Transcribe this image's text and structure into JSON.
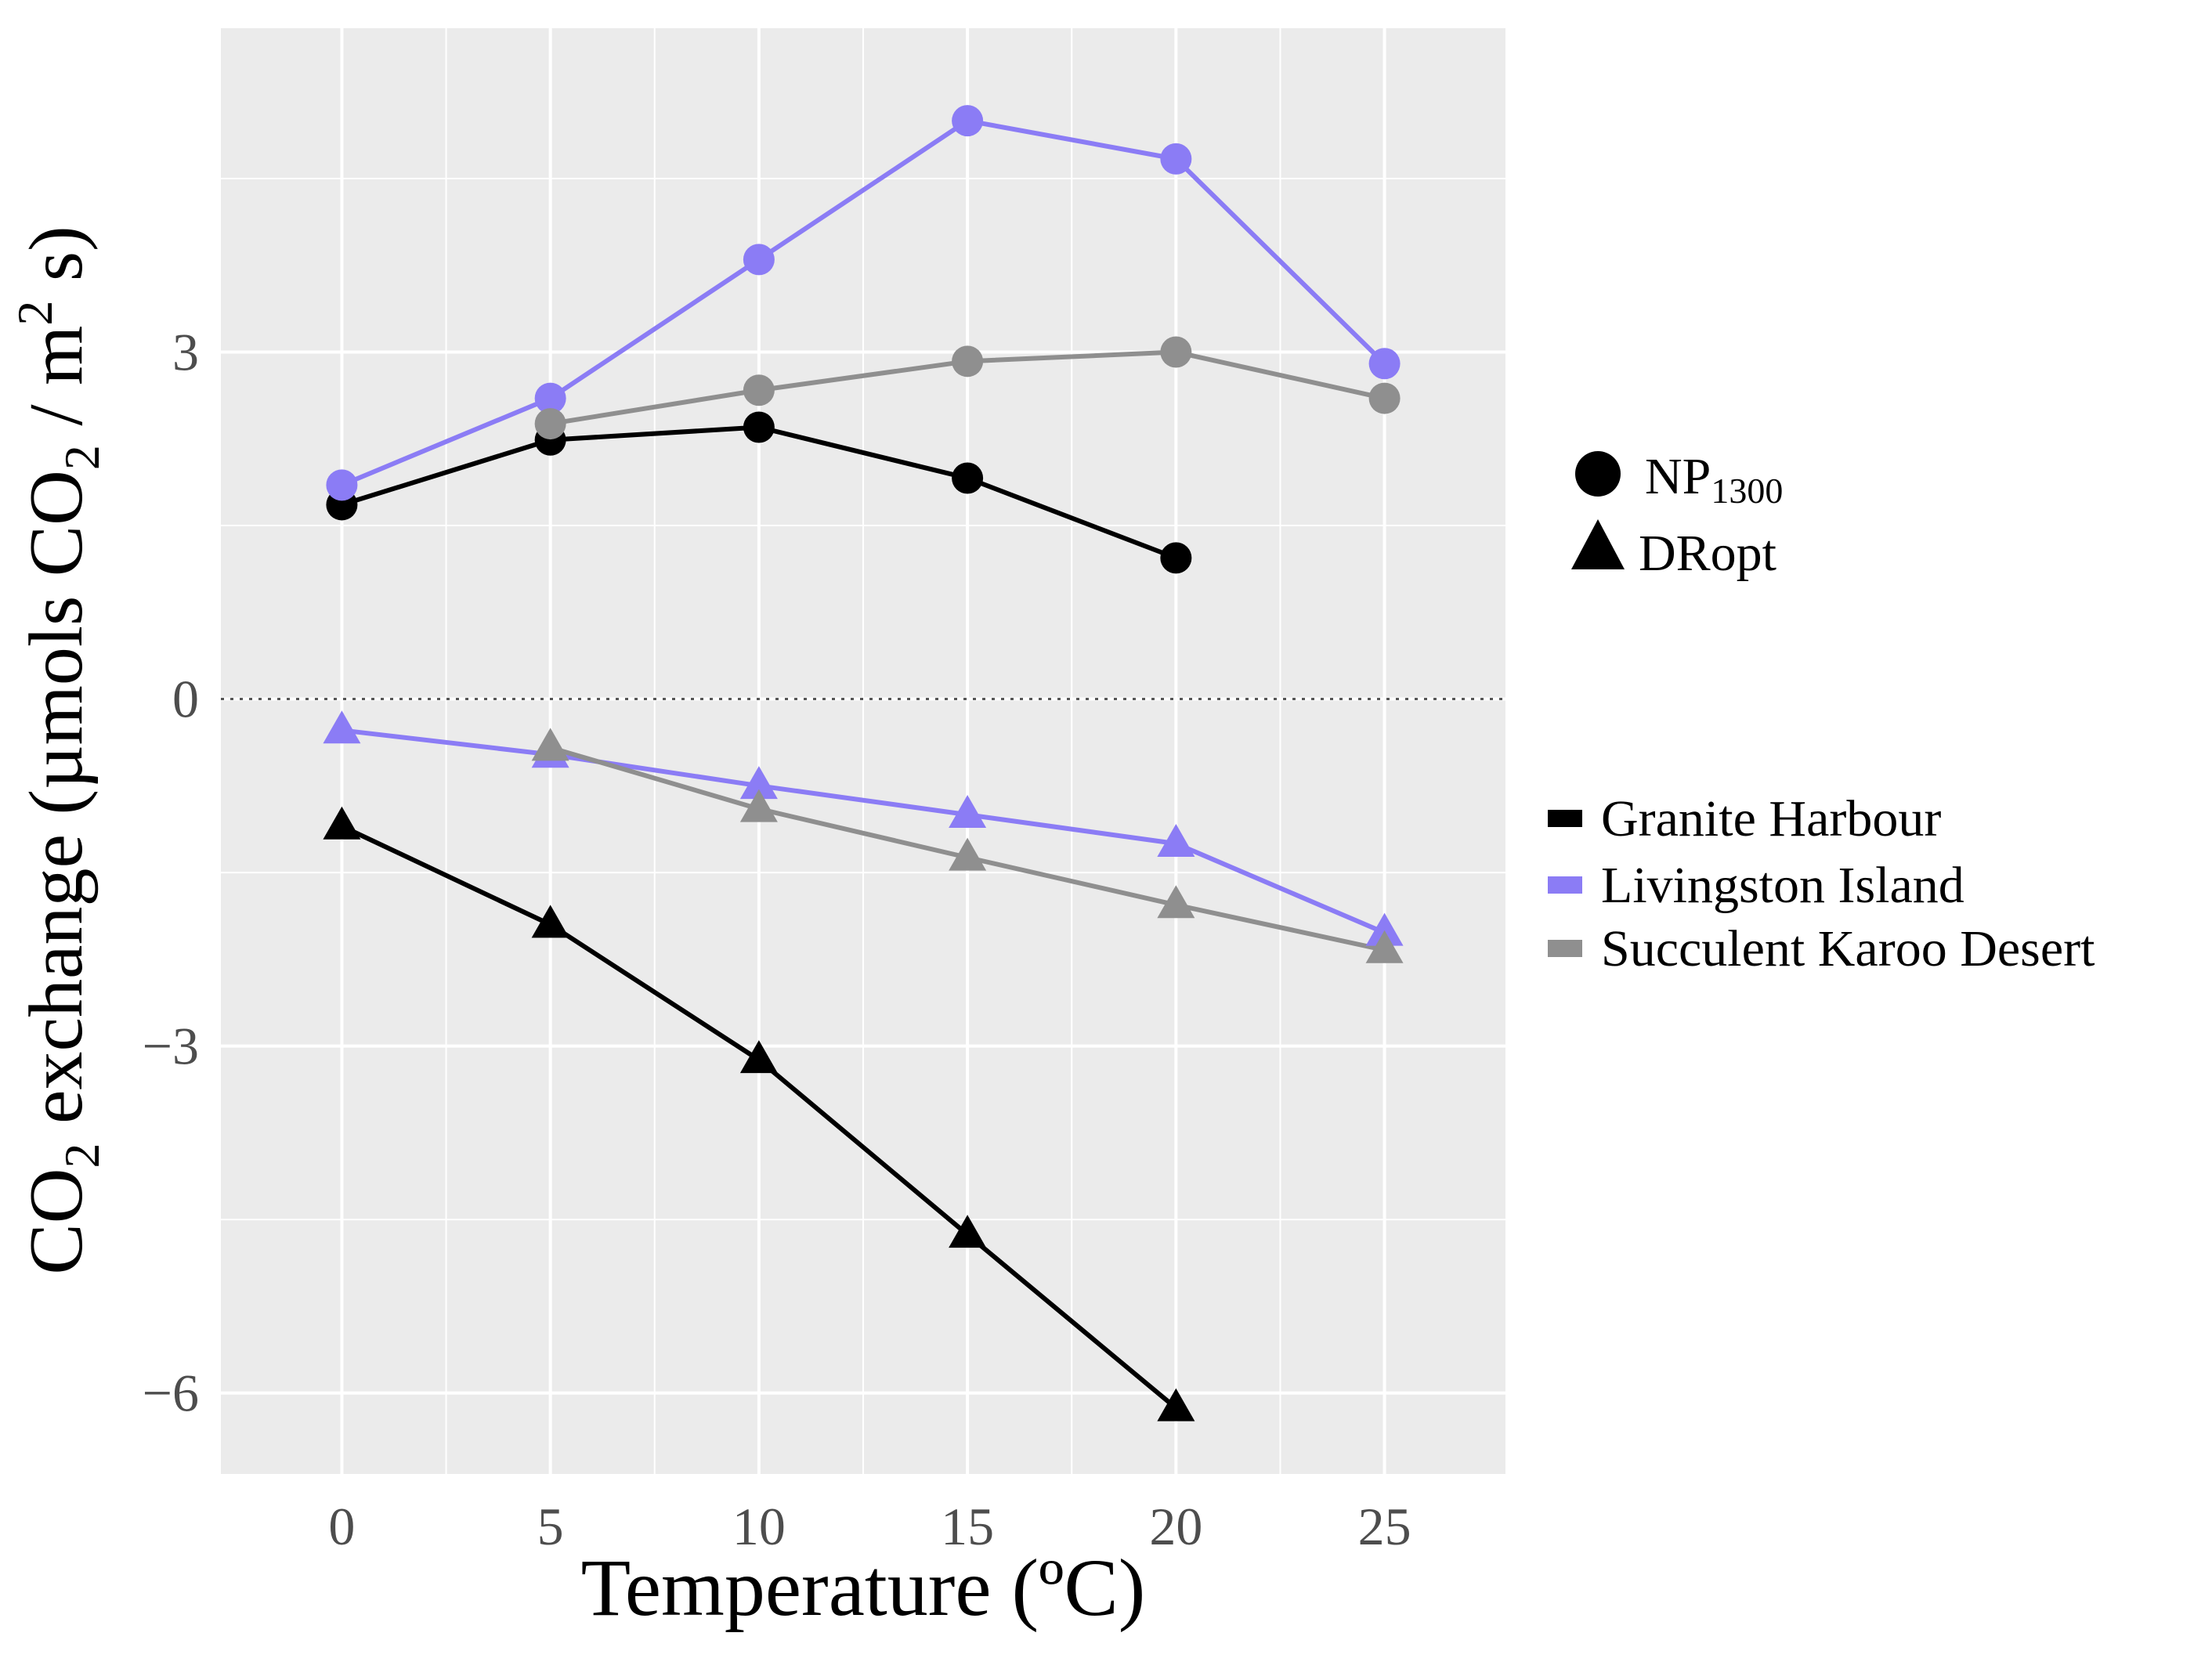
{
  "chart_data": {
    "type": "line",
    "x": [
      0,
      5,
      10,
      15,
      20,
      25
    ],
    "xlim": [
      -2.9,
      27.9
    ],
    "ylim": [
      -6.7,
      5.8
    ],
    "xticks": [
      "0",
      "5",
      "10",
      "15",
      "20",
      "25"
    ],
    "yticks": [
      {
        "value": 3,
        "label": "3"
      },
      {
        "value": 0,
        "label": "0"
      },
      {
        "value": -3,
        "label": "−3"
      },
      {
        "value": -6,
        "label": "−6"
      }
    ],
    "hline": {
      "y": 0,
      "style": "dotted"
    },
    "xlabel": "Temperature (ºC)",
    "ylabel": {
      "part1": "CO",
      "sub1": "2",
      "part2": " exchange (µmols CO",
      "sub2": "2",
      "part3": " / m",
      "sup": "2",
      "part4": " s)"
    },
    "series": [
      {
        "name": "Granite Harbour",
        "site": "granite",
        "measure": "NP",
        "color": "#000000",
        "values": [
          1.68,
          2.24,
          2.35,
          1.91,
          1.22,
          null
        ]
      },
      {
        "name": "Livingston Island",
        "site": "livingston",
        "measure": "NP",
        "color": "#8b7cf5",
        "values": [
          1.85,
          2.6,
          3.8,
          5.0,
          4.67,
          2.9
        ]
      },
      {
        "name": "Succulent Karoo Desert",
        "site": "karoo",
        "measure": "NP",
        "color": "#8f8f8f",
        "values": [
          null,
          2.38,
          2.67,
          2.92,
          3.0,
          2.6
        ]
      },
      {
        "name": "Granite Harbour",
        "site": "granite",
        "measure": "DR",
        "color": "#000000",
        "values": [
          -1.1,
          -1.95,
          -3.12,
          -4.63,
          -6.13,
          null
        ]
      },
      {
        "name": "Livingston Island",
        "site": "livingston",
        "measure": "DR",
        "color": "#8b7cf5",
        "values": [
          -0.27,
          -0.48,
          -0.75,
          -1.0,
          -1.25,
          -2.02
        ]
      },
      {
        "name": "Succulent Karoo Desert",
        "site": "karoo",
        "measure": "DR",
        "color": "#8f8f8f",
        "values": [
          null,
          -0.42,
          -0.95,
          -1.37,
          -1.78,
          -2.17
        ]
      }
    ],
    "legend_shape": {
      "position": "right",
      "items": [
        {
          "shape": "circle",
          "label": "NP",
          "sub": "1300"
        },
        {
          "shape": "triangle",
          "label": "DRopt",
          "sub": ""
        }
      ]
    },
    "legend_color": {
      "position": "right",
      "items": [
        {
          "label": "Granite Harbour",
          "color": "#000000"
        },
        {
          "label": "Livingston Island",
          "color": "#8b7cf5"
        },
        {
          "label": "Succulent Karoo Desert",
          "color": "#8f8f8f"
        }
      ]
    }
  }
}
